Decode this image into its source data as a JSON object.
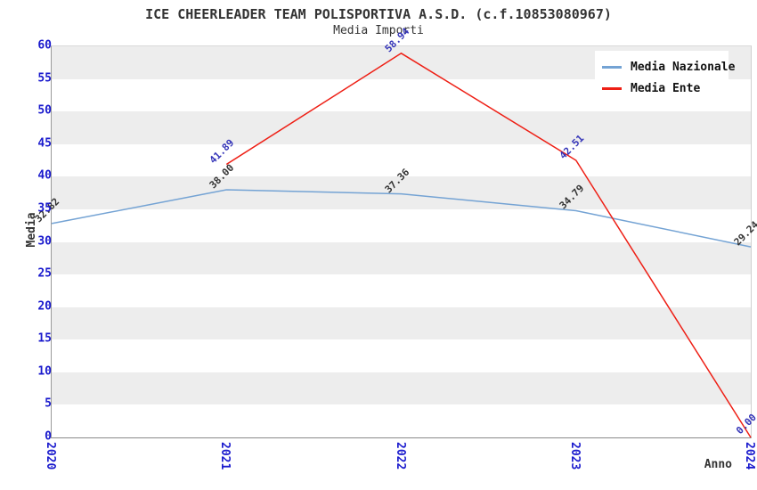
{
  "header": {
    "title": "ICE CHEERLEADER TEAM POLISPORTIVA A.S.D. (c.f.10853080967)",
    "subtitle": "Media Importi"
  },
  "axes": {
    "ylabel": "Media",
    "xlabel": "Anno",
    "ytick_labels": [
      "0",
      "5",
      "10",
      "15",
      "20",
      "25",
      "30",
      "35",
      "40",
      "45",
      "50",
      "55",
      "60"
    ],
    "xtick_labels": [
      "2020",
      "2021",
      "2022",
      "2023",
      "2024"
    ]
  },
  "legend": {
    "items": [
      {
        "label": "Media Nazionale",
        "color": "#74a3d4"
      },
      {
        "label": "Media Ente",
        "color": "#ee1f15"
      }
    ]
  },
  "colors": {
    "axis_tick_text": "#1a1acd",
    "band_gray": "#ededed",
    "band_white": "#ffffff",
    "title_text": "#333333",
    "nazionale_line": "#74a3d4",
    "ente_line": "#ee1f15",
    "nazionale_value_label": "#333333",
    "ente_value_label": "#3434b8"
  },
  "chart_data": {
    "type": "line",
    "title": "ICE CHEERLEADER TEAM POLISPORTIVA A.S.D. (c.f.10853080967)",
    "subtitle": "Media Importi",
    "xlabel": "Anno",
    "ylabel": "Media",
    "ylim": [
      0,
      60
    ],
    "ytick_step": 5,
    "categories": [
      "2020",
      "2021",
      "2022",
      "2023",
      "2024"
    ],
    "grid": "horizontal-bands",
    "legend_position": "top-right",
    "series": [
      {
        "name": "Media Nazionale",
        "color": "#74a3d4",
        "label_color": "#333333",
        "values": [
          32.82,
          38.0,
          37.36,
          34.79,
          29.24
        ],
        "value_labels": [
          "32.82",
          "38.00",
          "37.36",
          "34.79",
          "29.24"
        ]
      },
      {
        "name": "Media Ente",
        "color": "#ee1f15",
        "label_color": "#3434b8",
        "values": [
          null,
          41.89,
          58.94,
          42.51,
          0.0
        ],
        "value_labels": [
          null,
          "41.89",
          "58.94",
          "42.51",
          "0.00"
        ]
      }
    ]
  }
}
